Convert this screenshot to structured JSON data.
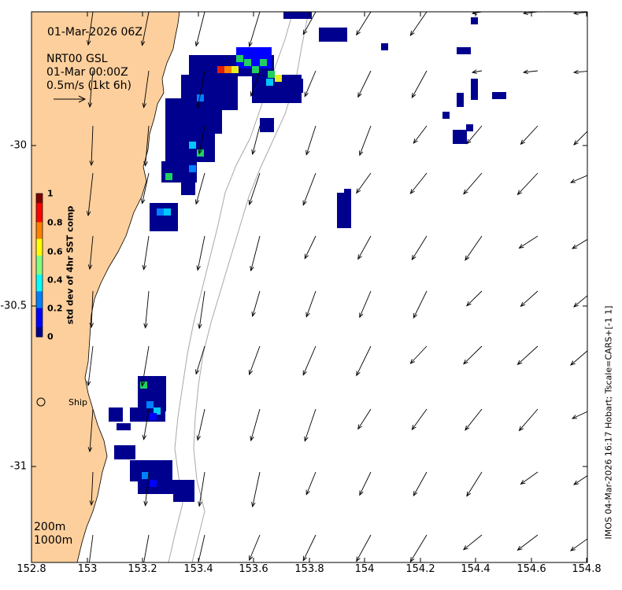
{
  "header": {
    "datetime": "01-Mar-2026 06Z",
    "source": "NRT00 GSL",
    "source_time": "01-Mar 00:00Z",
    "vector_scale": "0.5m/s (1kt 6h)"
  },
  "colorbar": {
    "label": "std dev of 4hr SST comp",
    "ticks": [
      "1",
      "0.8",
      "0.6",
      "0.4",
      "0.2",
      "0"
    ],
    "colors": [
      "#00008f",
      "#0000ff",
      "#0080ff",
      "#00ffff",
      "#80ff80",
      "#ffff00",
      "#ff8000",
      "#ff0000",
      "#800000"
    ]
  },
  "axes": {
    "x_ticks": [
      "152.8",
      "153",
      "153.2",
      "153.4",
      "153.6",
      "153.8",
      "154",
      "154.2",
      "154.4",
      "154.6",
      "154.8"
    ],
    "y_ticks": [
      "-30",
      "-30.5",
      "-31"
    ]
  },
  "ship": {
    "label": "Ship"
  },
  "contours": {
    "label_200": "200m",
    "label_1000": "1000m"
  },
  "credit": "IMOS 04-Mar-2026 16:17 Hobart; Tscale=CARS+[-1 1]",
  "colors": {
    "land": "#fccf9d",
    "contour": "#a8a8a8",
    "arrow": "#000000"
  }
}
